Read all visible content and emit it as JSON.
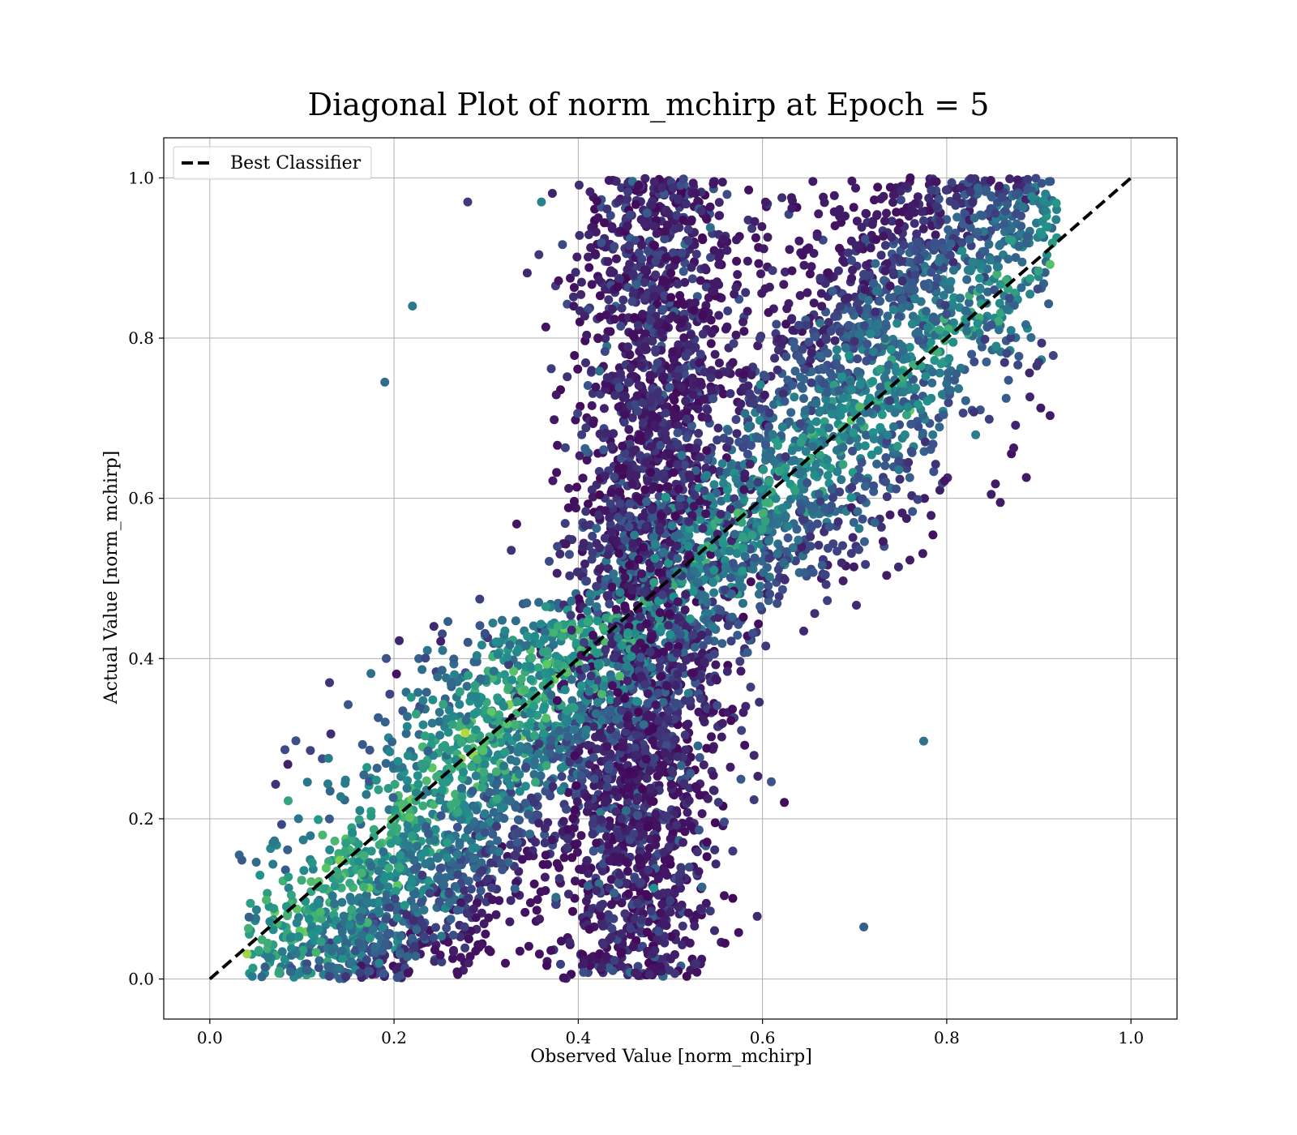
{
  "chart_data": {
    "type": "scatter",
    "title": "Diagonal Plot of norm_mchirp at Epoch = 5",
    "xlabel": "Observed Value [norm_mchirp]",
    "ylabel": "Actual Value [norm_mchirp]",
    "xlim": [
      -0.05,
      1.05
    ],
    "ylim": [
      -0.05,
      1.05
    ],
    "xticks": [
      "0.0",
      "0.2",
      "0.4",
      "0.6",
      "0.8",
      "1.0"
    ],
    "yticks": [
      "0.0",
      "0.2",
      "0.4",
      "0.6",
      "0.8",
      "1.0"
    ],
    "xtick_values": [
      0.0,
      0.2,
      0.4,
      0.6,
      0.8,
      1.0
    ],
    "ytick_values": [
      0.0,
      0.2,
      0.4,
      0.6,
      0.8,
      1.0
    ],
    "grid": true,
    "colormap": "viridis",
    "colormap_stops": [
      "#440154",
      "#3b528b",
      "#21918c",
      "#5ec962",
      "#fde725"
    ],
    "point_color_note": "points colored on viridis scale; darkest (purple) in the vertical band near observed 0.40–0.55, lighter (teal/green/yellow) near the diagonal",
    "reference_line": {
      "name": "Best Classifier",
      "style": "dashed",
      "color": "#000000",
      "x": [
        0.0,
        1.0
      ],
      "y": [
        0.0,
        1.0
      ]
    },
    "legend": {
      "position": "top-left",
      "entries": [
        "Best Classifier"
      ]
    },
    "point_clusters": [
      {
        "observed_range": [
          0.05,
          0.3
        ],
        "actual_range": [
          0.0,
          0.35
        ],
        "density": "high",
        "color": "teal-green"
      },
      {
        "observed_range": [
          0.2,
          0.45
        ],
        "actual_range": [
          0.1,
          0.55
        ],
        "density": "high",
        "color": "blue-teal"
      },
      {
        "observed_range": [
          0.4,
          0.55
        ],
        "actual_range": [
          0.0,
          1.0
        ],
        "density": "very high",
        "color": "dark purple"
      },
      {
        "observed_range": [
          0.5,
          0.7
        ],
        "actual_range": [
          0.1,
          0.97
        ],
        "density": "high",
        "color": "indigo-blue"
      },
      {
        "observed_range": [
          0.65,
          0.9
        ],
        "actual_range": [
          0.45,
          1.0
        ],
        "density": "high",
        "color": "blue-teal"
      }
    ],
    "highlighted_points": [
      {
        "x": 0.06,
        "y": 0.015
      },
      {
        "x": 0.13,
        "y": 0.37
      },
      {
        "x": 0.19,
        "y": 0.745
      },
      {
        "x": 0.22,
        "y": 0.84
      },
      {
        "x": 0.28,
        "y": 0.97
      },
      {
        "x": 0.36,
        "y": 0.97
      },
      {
        "x": 0.595,
        "y": 0.62
      },
      {
        "x": 0.71,
        "y": 0.065
      },
      {
        "x": 0.775,
        "y": 0.297
      },
      {
        "x": 0.9,
        "y": 0.77
      }
    ]
  }
}
